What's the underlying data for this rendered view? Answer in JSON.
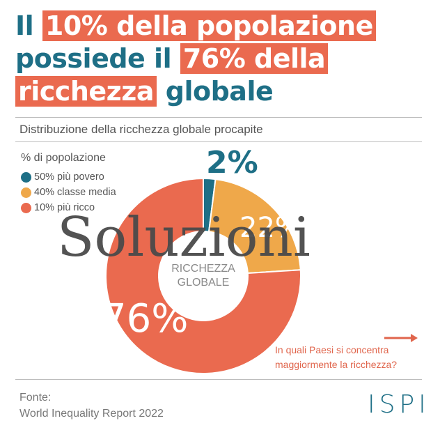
{
  "title": {
    "line1_pre": "Il ",
    "line1_hl": "10% della popolazione",
    "line2_pre": "possiede il ",
    "line2_hl": "76% della",
    "line3_hl": "ricchezza",
    "line3_post": " globale"
  },
  "subtitle": "Distribuzione della ricchezza globale procapite",
  "chart_data": {
    "type": "pie",
    "title": "",
    "legend_title": "% di popolazione",
    "legend_position": "top-left",
    "center_label": [
      "RICCHEZZA",
      "GLOBALE"
    ],
    "slices": [
      {
        "label": "50% più povero",
        "value": 2,
        "display": "2%",
        "color": "#1e6f86"
      },
      {
        "label": "40% classe media",
        "value": 22,
        "display": "22%",
        "color": "#efa84a"
      },
      {
        "label": "10% più ricco",
        "value": 76,
        "display": "76%",
        "color": "#ea6a4f"
      }
    ]
  },
  "cta": {
    "line1": "In quali Paesi si concentra",
    "line2": "maggiormente la ricchezza?"
  },
  "source": {
    "label": "Fonte:",
    "value": "World Inequality Report 2022"
  },
  "logo_text": "ISPI",
  "watermark": "Soluzioni",
  "colors": {
    "teal": "#1e6f86",
    "orange": "#ea6a4f",
    "yellow": "#efa84a"
  }
}
